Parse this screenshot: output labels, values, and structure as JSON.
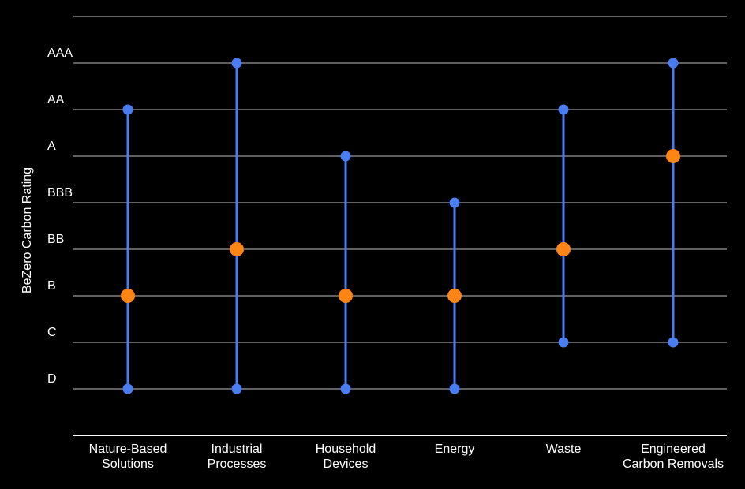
{
  "chart_data": {
    "type": "range-dot",
    "title": "",
    "xlabel": "",
    "ylabel": "BeZero Carbon Rating",
    "y_categories": [
      "D",
      "C",
      "B",
      "BB",
      "BBB",
      "A",
      "AA",
      "AAA"
    ],
    "categories": [
      [
        "Nature-Based",
        "Solutions"
      ],
      [
        "Industrial",
        "Processes"
      ],
      [
        "Household",
        "Devices"
      ],
      [
        "Energy"
      ],
      [
        "Waste"
      ],
      [
        "Engineered",
        "Carbon Removals"
      ]
    ],
    "series": [
      {
        "key": "low",
        "values": [
          "D",
          "D",
          "D",
          "D",
          "C",
          "C"
        ]
      },
      {
        "key": "high",
        "values": [
          "AA",
          "AAA",
          "A",
          "BBB",
          "AA",
          "AAA"
        ]
      },
      {
        "key": "marker",
        "values": [
          "B",
          "BB",
          "B",
          "B",
          "BB",
          "A"
        ]
      }
    ],
    "grid": true,
    "legend": "none"
  },
  "colors": {
    "background": "#000000",
    "text": "#ffffff",
    "gridline": "#bfbfbf",
    "baseline": "#ffffff",
    "range": "#4a7cf2",
    "marker": "#ff8614"
  }
}
